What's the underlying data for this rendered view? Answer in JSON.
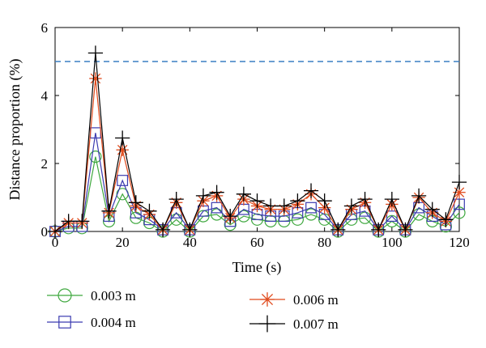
{
  "chart_data": {
    "type": "line",
    "xlabel": "Time (s)",
    "ylabel": "Distance proportion (%)",
    "xlim": [
      0,
      120
    ],
    "ylim": [
      0,
      6
    ],
    "xticks": [
      0,
      20,
      40,
      60,
      80,
      100,
      120
    ],
    "yticks": [
      0,
      2,
      4,
      6
    ],
    "threshold": {
      "y": 5,
      "color": "#3a7fc4",
      "style": "dashed"
    },
    "grid": false,
    "legend": "bottom",
    "x": [
      0,
      4,
      8,
      12,
      16,
      20,
      24,
      28,
      32,
      36,
      40,
      44,
      48,
      52,
      56,
      60,
      64,
      68,
      72,
      76,
      80,
      84,
      88,
      92,
      96,
      100,
      104,
      108,
      112,
      116,
      120
    ],
    "series": [
      {
        "name": "0.003 m",
        "color": "#3fa83f",
        "marker": "circle",
        "values": [
          0.0,
          0.1,
          0.1,
          2.2,
          0.3,
          1.1,
          0.4,
          0.25,
          0.0,
          0.35,
          0.0,
          0.45,
          0.5,
          0.2,
          0.45,
          0.35,
          0.3,
          0.3,
          0.35,
          0.5,
          0.35,
          0.0,
          0.35,
          0.4,
          0.0,
          0.3,
          0.0,
          0.5,
          0.3,
          0.15,
          0.55
        ]
      },
      {
        "name": "0.004 m",
        "color": "#3b3bb0",
        "marker": "square",
        "values": [
          0.0,
          0.15,
          0.15,
          2.9,
          0.45,
          1.5,
          0.55,
          0.35,
          0.05,
          0.55,
          0.05,
          0.6,
          0.7,
          0.3,
          0.65,
          0.5,
          0.45,
          0.45,
          0.55,
          0.7,
          0.5,
          0.05,
          0.5,
          0.6,
          0.05,
          0.45,
          0.05,
          0.7,
          0.45,
          0.2,
          0.8
        ]
      },
      {
        "name": "0.006 m",
        "color": "#e04a1c",
        "marker": "asterisk",
        "values": [
          0.0,
          0.25,
          0.25,
          4.5,
          0.55,
          2.4,
          0.75,
          0.5,
          0.05,
          0.85,
          0.05,
          0.9,
          1.05,
          0.4,
          0.95,
          0.75,
          0.65,
          0.65,
          0.8,
          1.1,
          0.7,
          0.05,
          0.65,
          0.85,
          0.05,
          0.8,
          0.05,
          1.0,
          0.55,
          0.3,
          1.15
        ]
      },
      {
        "name": "0.007 m",
        "color": "#000000",
        "marker": "plus",
        "values": [
          0.0,
          0.3,
          0.3,
          5.25,
          0.6,
          2.75,
          0.85,
          0.6,
          0.05,
          0.95,
          0.05,
          1.05,
          1.15,
          0.45,
          1.1,
          0.9,
          0.75,
          0.75,
          0.9,
          1.2,
          0.9,
          0.05,
          0.75,
          0.95,
          0.05,
          0.95,
          0.05,
          1.05,
          0.65,
          0.35,
          1.45
        ]
      }
    ]
  }
}
